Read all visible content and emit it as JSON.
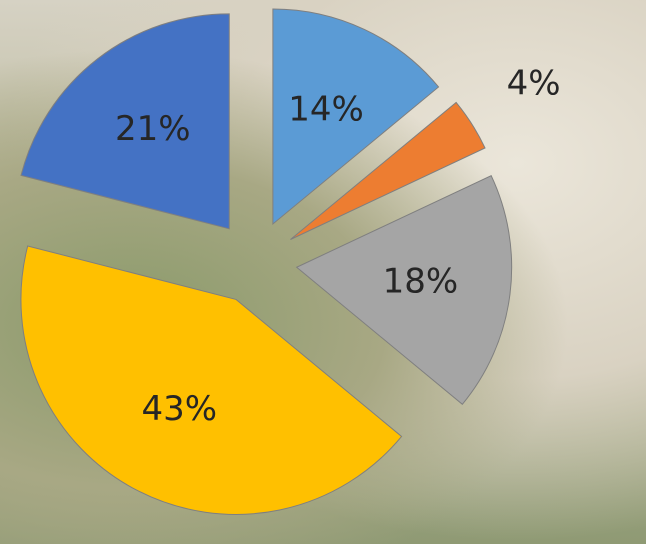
{
  "chart_data": {
    "type": "pie",
    "values": [
      14,
      4,
      18,
      43,
      21
    ],
    "value_labels": [
      "14%",
      "4%",
      "18%",
      "43%",
      "21%"
    ],
    "colors": [
      "#5b9bd5",
      "#ed7d31",
      "#a5a5a5",
      "#ffc000",
      "#4472c4"
    ],
    "exploded": true
  }
}
